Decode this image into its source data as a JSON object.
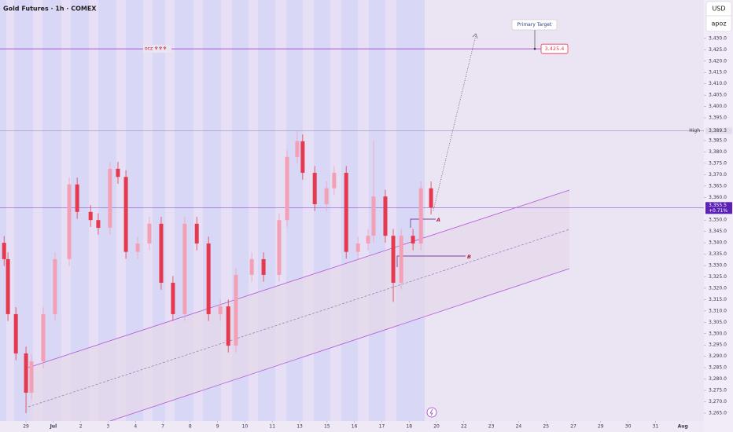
{
  "chart_data": {
    "type": "candlestick",
    "title": "Gold Futures · 1h · COMEX",
    "currency": "USD",
    "account": "apoz",
    "up_color": "#f3a0b6",
    "down_color": "#e5394f",
    "x": [
      -0.8,
      -0.66,
      -0.37,
      0,
      0.2,
      0.63,
      1.06,
      1.58,
      1.87,
      2.36,
      2.64,
      3.07,
      3.36,
      3.65,
      4.08,
      4.51,
      4.94,
      5.37,
      5.8,
      6.24,
      6.67,
      7.1,
      7.39,
      7.67,
      8.25,
      8.68,
      9.25,
      9.54,
      9.91,
      10.11,
      10.55,
      10.98,
      11.26,
      11.7,
      12.13,
      12.5,
      12.7,
      13.13,
      13.42,
      13.71,
      14.14,
      14.43,
      14.8
    ],
    "open": [
      3340,
      3332.8,
      3308.6,
      3291.3,
      3274,
      3287.8,
      3308.6,
      3332.8,
      3365.7,
      3353.6,
      3350,
      3346.6,
      3372.6,
      3369,
      3336,
      3339.7,
      3348.4,
      3322.4,
      3308.6,
      3348.4,
      3339.7,
      3308.6,
      3312,
      3294.7,
      3325.9,
      3332.8,
      3325.9,
      3350,
      3377.8,
      3384.7,
      3370.8,
      3357,
      3364,
      3370.8,
      3336,
      3339.7,
      3343.1,
      3360.4,
      3343.1,
      3322.4,
      3343.1,
      3339.7,
      3364
    ],
    "high": [
      3343,
      3335.8,
      3311.6,
      3294.3,
      3290.8,
      3311.6,
      3335.8,
      3368.7,
      3368.7,
      3356.6,
      3353,
      3375.6,
      3375.6,
      3372,
      3342.7,
      3351.4,
      3351.4,
      3325.4,
      3351.4,
      3351.4,
      3342.7,
      3315,
      3315,
      3328.9,
      3335.8,
      3335.8,
      3353,
      3380.8,
      3389.3,
      3387.7,
      3373.8,
      3367,
      3373.8,
      3373.8,
      3342.7,
      3346.1,
      3385,
      3363.4,
      3346.1,
      3346.1,
      3346.1,
      3367,
      3367
    ],
    "low": [
      3329.8,
      3305.6,
      3288.3,
      3265,
      3271,
      3284.8,
      3305.6,
      3329.8,
      3350.6,
      3347,
      3343.6,
      3343.6,
      3366,
      3333,
      3333,
      3336.7,
      3319.4,
      3305.6,
      3305.6,
      3336.7,
      3305.6,
      3305.6,
      3291.7,
      3291.7,
      3322.9,
      3322.9,
      3322.9,
      3347,
      3374.8,
      3367.8,
      3354,
      3354,
      3361,
      3333,
      3333,
      3336.7,
      3340.1,
      3340.1,
      3314,
      3319.4,
      3336.7,
      3336.7,
      3352.5
    ],
    "close": [
      3332.8,
      3308.6,
      3291.3,
      3274,
      3287.8,
      3308.6,
      3332.8,
      3365.7,
      3353.6,
      3350,
      3346.6,
      3372.6,
      3369,
      3336,
      3339.7,
      3348.4,
      3322.4,
      3308.6,
      3348.4,
      3339.7,
      3308.6,
      3312,
      3294.7,
      3325.9,
      3332.8,
      3325.9,
      3350,
      3377.8,
      3384.7,
      3370.8,
      3357,
      3364,
      3370.8,
      3336,
      3339.7,
      3343.1,
      3360.4,
      3343.1,
      3322.4,
      3343.1,
      3339.7,
      3364,
      3355.5
    ],
    "xlim": [
      -0.95,
      24.77
    ],
    "xticks": [
      {
        "value": 0,
        "label": "29"
      },
      {
        "value": 1,
        "label": "Jul"
      },
      {
        "value": 2,
        "label": "2"
      },
      {
        "value": 3,
        "label": "3"
      },
      {
        "value": 4,
        "label": "4"
      },
      {
        "value": 5,
        "label": "7"
      },
      {
        "value": 6,
        "label": "8"
      },
      {
        "value": 7,
        "label": "9"
      },
      {
        "value": 8,
        "label": "10"
      },
      {
        "value": 9,
        "label": "11"
      },
      {
        "value": 10,
        "label": "13"
      },
      {
        "value": 11,
        "label": "15"
      },
      {
        "value": 12,
        "label": "16"
      },
      {
        "value": 13,
        "label": "17"
      },
      {
        "value": 14,
        "label": "18"
      },
      {
        "value": 15,
        "label": "20"
      },
      {
        "value": 16,
        "label": "22"
      },
      {
        "value": 17,
        "label": "23"
      },
      {
        "value": 18,
        "label": "24"
      },
      {
        "value": 19,
        "label": "25"
      },
      {
        "value": 20,
        "label": "27"
      },
      {
        "value": 21,
        "label": "29"
      },
      {
        "value": 22,
        "label": "30"
      },
      {
        "value": 23,
        "label": "31"
      },
      {
        "value": 24,
        "label": "Aug"
      }
    ],
    "ylim": [
      3256.7,
      3446.9
    ],
    "yticks": [
      {
        "value": 3265,
        "label": "3,265.0"
      },
      {
        "value": 3270,
        "label": "3,270.0"
      },
      {
        "value": 3275,
        "label": "3,275.0"
      },
      {
        "value": 3280,
        "label": "3,280.0"
      },
      {
        "value": 3285,
        "label": "3,285.0"
      },
      {
        "value": 3290,
        "label": "3,290.0"
      },
      {
        "value": 3295,
        "label": "3,295.0"
      },
      {
        "value": 3300,
        "label": "3,300.0"
      },
      {
        "value": 3305,
        "label": "3,305.0"
      },
      {
        "value": 3310,
        "label": "3,310.0"
      },
      {
        "value": 3315,
        "label": "3,315.0"
      },
      {
        "value": 3320,
        "label": "3,320.0"
      },
      {
        "value": 3325,
        "label": "3,325.0"
      },
      {
        "value": 3330,
        "label": "3,330.0"
      },
      {
        "value": 3335,
        "label": "3,335.0"
      },
      {
        "value": 3340,
        "label": "3,340.0"
      },
      {
        "value": 3345,
        "label": "3,345.0"
      },
      {
        "value": 3350,
        "label": "3,350.0"
      },
      {
        "value": 3360,
        "label": "3,360.0"
      },
      {
        "value": 3365,
        "label": "3,365.0"
      },
      {
        "value": 3370,
        "label": "3,370.0"
      },
      {
        "value": 3375,
        "label": "3,375.0"
      },
      {
        "value": 3380,
        "label": "3,380.0"
      },
      {
        "value": 3385,
        "label": "3,385.0"
      },
      {
        "value": 3395,
        "label": "3,395.0"
      },
      {
        "value": 3400,
        "label": "3,400.0"
      },
      {
        "value": 3405,
        "label": "3,405.0"
      },
      {
        "value": 3410,
        "label": "3,410.0"
      },
      {
        "value": 3415,
        "label": "3,415.0"
      },
      {
        "value": 3420,
        "label": "3,420.0"
      },
      {
        "value": 3425,
        "label": "3,425.0"
      },
      {
        "value": 3430,
        "label": "3,430.0"
      }
    ],
    "high_marker": {
      "text": "High",
      "value": 3389.3,
      "value_label": "3,389.3"
    },
    "last": {
      "value": 3355.5,
      "value_label": "3,355.5",
      "change": "+0.71%"
    },
    "target": {
      "text": "Primary Target",
      "value": 3425.4,
      "value_label": "3,425.4",
      "note": "ocz ♆♆♆"
    },
    "annotations": [
      "A",
      "B"
    ]
  }
}
